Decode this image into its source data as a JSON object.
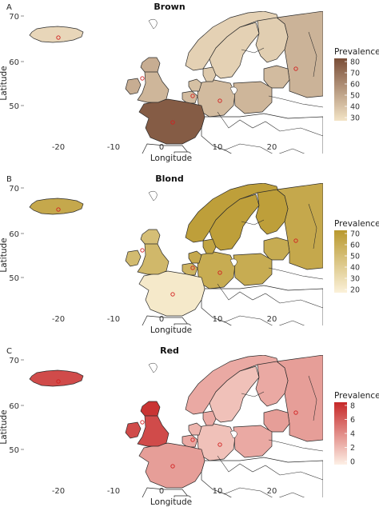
{
  "figure": {
    "legend_title": "Prevalence",
    "x_axis_label": "Longitude",
    "y_axis_label": "Latitude",
    "x_ticks": [
      "-20",
      "-10",
      "0",
      "10",
      "20"
    ],
    "y_ticks": [
      "70",
      "60",
      "50"
    ],
    "colors": {
      "outline": "#2a2a2a",
      "site_marker": "#d21f1f",
      "background": "#ffffff"
    }
  },
  "panels": [
    {
      "letter": "A",
      "title": "Brown",
      "legend_ticks": [
        "80",
        "70",
        "60",
        "50",
        "40",
        "30"
      ],
      "scale": {
        "min": 25,
        "max": 80,
        "low_color": "#f3e4c6",
        "high_color": "#7a4e38"
      },
      "prevalence": {
        "iceland": 30,
        "scotland": 45,
        "england": 42,
        "ireland": 45,
        "france": 75,
        "belgium": 40,
        "netherlands": 38,
        "germany": 40,
        "denmark": 35,
        "norway": 32,
        "sweden": 32,
        "finland": 33,
        "baltics": 40,
        "poland": 42,
        "russia": 43
      }
    },
    {
      "letter": "B",
      "title": "Blond",
      "legend_ticks": [
        "70",
        "60",
        "50",
        "40",
        "30",
        "20"
      ],
      "scale": {
        "min": 15,
        "max": 72,
        "low_color": "#fbf1d9",
        "high_color": "#b9992e"
      },
      "prevalence": {
        "iceland": 62,
        "scotland": 48,
        "england": 52,
        "ireland": 50,
        "france": 20,
        "belgium": 55,
        "netherlands": 62,
        "germany": 60,
        "denmark": 65,
        "norway": 68,
        "sweden": 68,
        "finland": 68,
        "baltics": 60,
        "poland": 60,
        "russia": 62
      }
    },
    {
      "letter": "C",
      "title": "Red",
      "legend_ticks": [
        "8",
        "6",
        "4",
        "2",
        "0"
      ],
      "scale": {
        "min": 0,
        "max": 8.5,
        "low_color": "#fdf0e6",
        "high_color": "#c62828"
      },
      "prevalence": {
        "iceland": 7,
        "scotland": 8,
        "england": 7,
        "ireland": 7,
        "france": 3.5,
        "belgium": 3,
        "netherlands": 2.5,
        "germany": 2,
        "denmark": 3,
        "norway": 3,
        "sweden": 2,
        "finland": 3,
        "baltics": 3.5,
        "poland": 3,
        "russia": 3.5
      }
    }
  ]
}
